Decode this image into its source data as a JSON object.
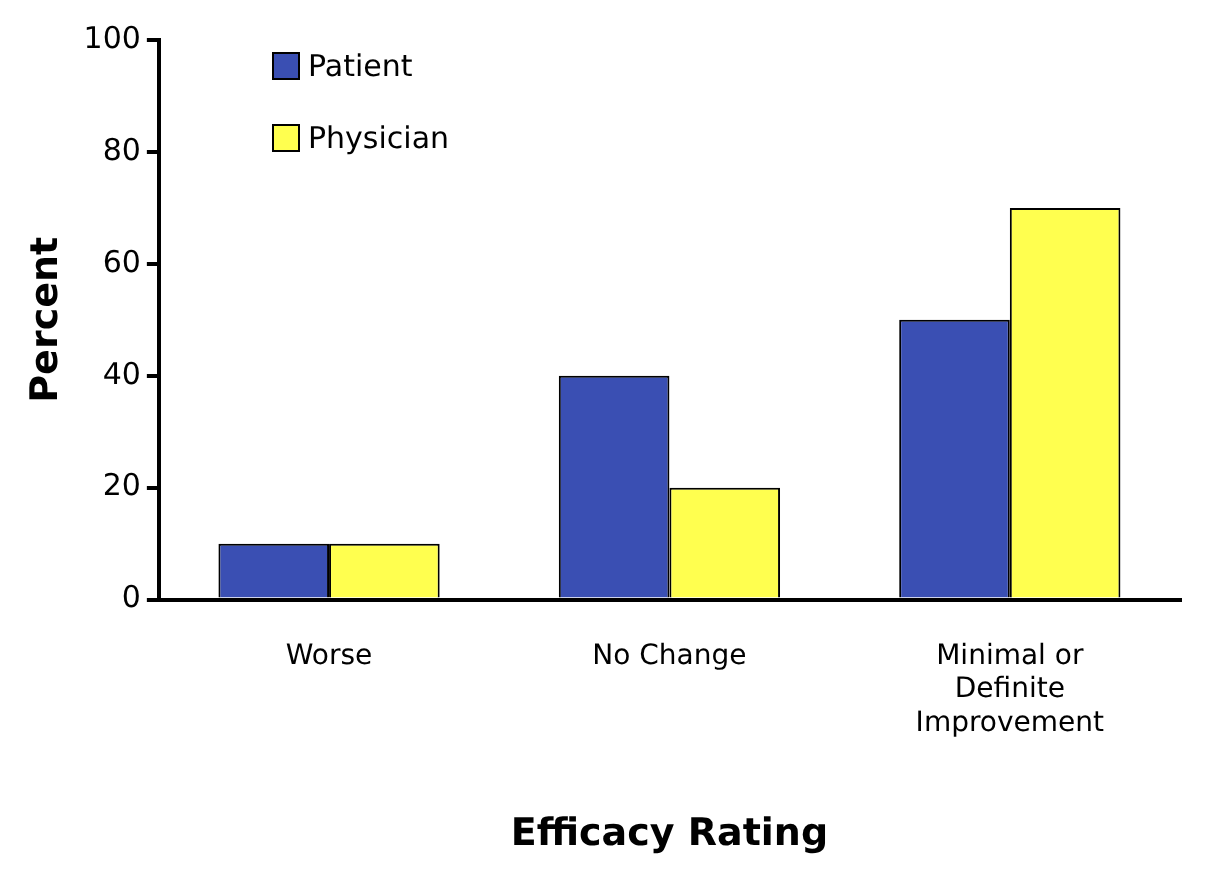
{
  "chart_data": {
    "type": "bar",
    "xlabel": "Efficacy Rating",
    "ylabel": "Percent",
    "categories": [
      "Worse",
      "No Change",
      "Minimal or Definite Improvement"
    ],
    "series": [
      {
        "name": "Patient",
        "color": "#3a4fb3",
        "values": [
          10,
          40,
          50
        ]
      },
      {
        "name": "Physician",
        "color": "#ffff4f",
        "values": [
          10,
          20,
          70
        ]
      }
    ],
    "ylim": [
      0,
      100
    ],
    "yticks": [
      0,
      20,
      40,
      60,
      80,
      100
    ],
    "grid": false,
    "legend": "top left"
  }
}
